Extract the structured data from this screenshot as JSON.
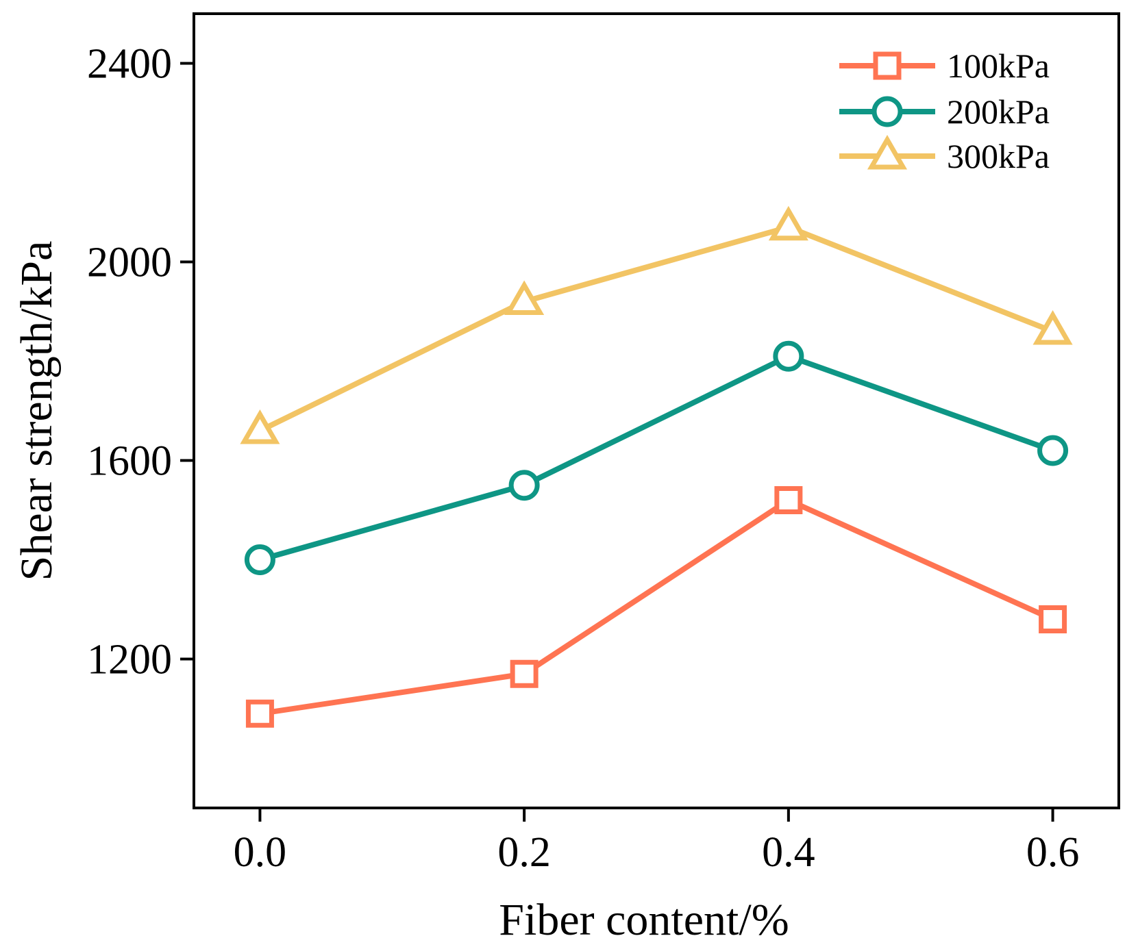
{
  "chart_data": {
    "type": "line",
    "title": "",
    "xlabel": "Fiber content/%",
    "ylabel": "Shear strength/kPa",
    "x": [
      0.0,
      0.2,
      0.4,
      0.6
    ],
    "x_tick_labels": [
      "0.0",
      "0.2",
      "0.4",
      "0.6"
    ],
    "y_ticks": [
      1200,
      1600,
      2000,
      2400
    ],
    "y_tick_labels": [
      "1200",
      "1600",
      "2000",
      "2400"
    ],
    "xlim": [
      -0.05,
      0.65
    ],
    "ylim": [
      900,
      2500
    ],
    "legend_position": "top-right",
    "series": [
      {
        "name": "100kPa",
        "marker": "square",
        "color": "#FF7452",
        "values": [
          1090,
          1170,
          1520,
          1280
        ]
      },
      {
        "name": "200kPa",
        "marker": "circle",
        "color": "#0E9685",
        "values": [
          1400,
          1550,
          1810,
          1620
        ]
      },
      {
        "name": "300kPa",
        "marker": "triangle",
        "color": "#F2C464",
        "values": [
          1660,
          1920,
          2070,
          1860
        ]
      }
    ]
  }
}
